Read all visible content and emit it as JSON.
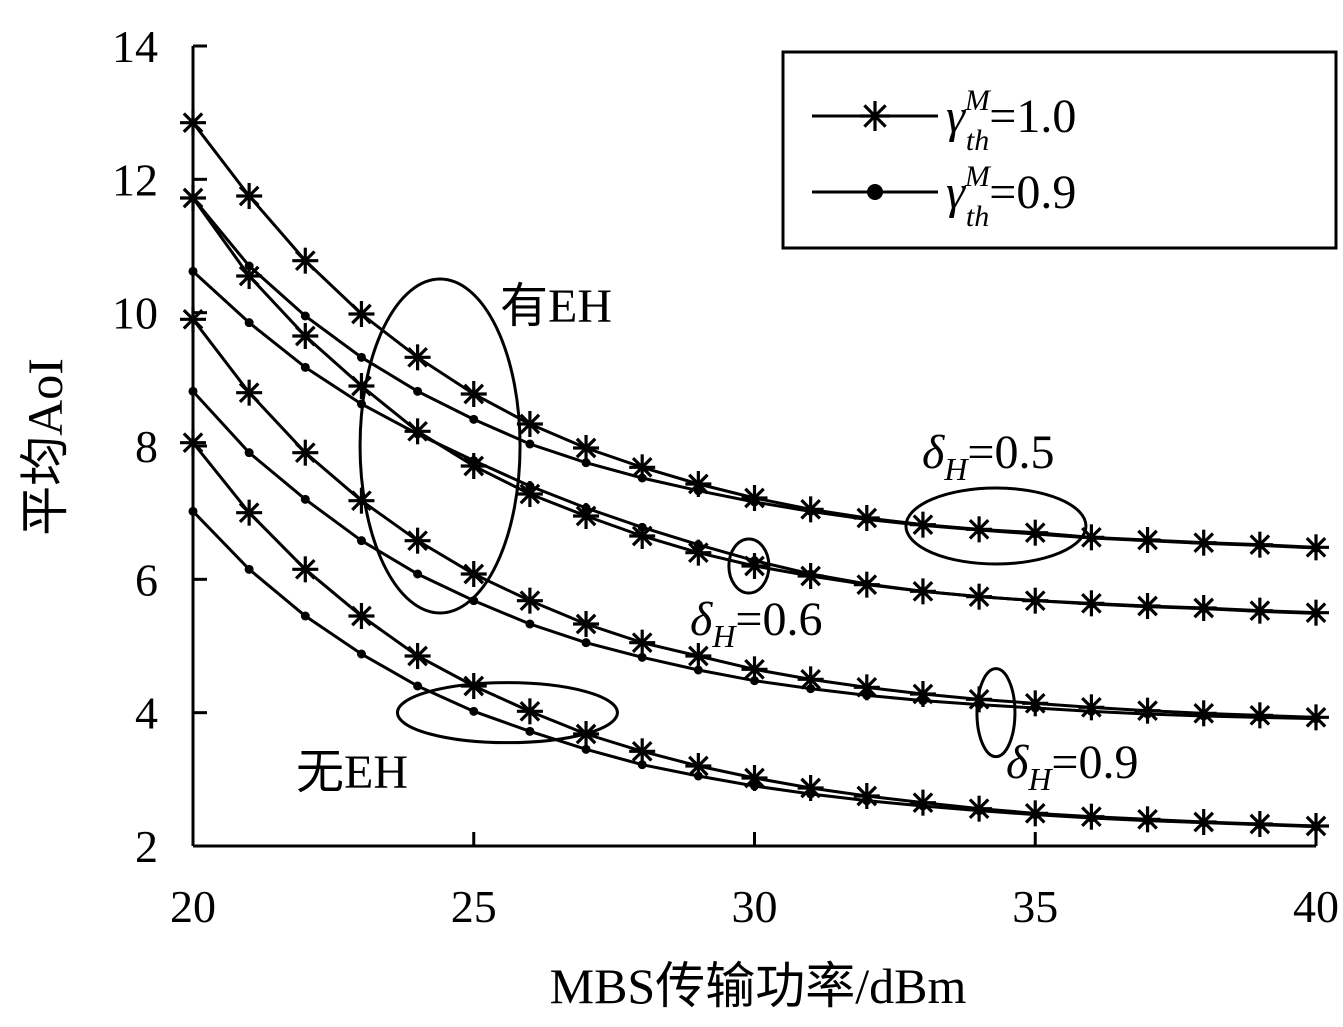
{
  "chart_data": {
    "type": "line",
    "xlabel": "MBS传输功率/dBm",
    "ylabel": "平均AoI",
    "xlim": [
      20,
      40
    ],
    "ylim": [
      2,
      14
    ],
    "xticks": [
      20,
      25,
      30,
      35,
      40
    ],
    "yticks": [
      2,
      4,
      6,
      8,
      10,
      12,
      14
    ],
    "grid": false,
    "legend_position": "top-right",
    "legend": [
      {
        "sym": "γ",
        "sup": "M",
        "sub": "th",
        "value": "=1.0",
        "marker": "asterisk"
      },
      {
        "sym": "γ",
        "sup": "M",
        "sub": "th",
        "value": "=0.9",
        "marker": "dot"
      }
    ],
    "annotations": [
      {
        "id": "with-eh",
        "text": "有EH"
      },
      {
        "id": "without-eh",
        "text": "无EH"
      },
      {
        "id": "delta-05",
        "sym": "δ",
        "sub": "H",
        "value": "=0.5"
      },
      {
        "id": "delta-06",
        "sym": "δ",
        "sub": "H",
        "value": "=0.6"
      },
      {
        "id": "delta-09",
        "sym": "δ",
        "sub": "H",
        "value": "=0.9"
      }
    ],
    "x": [
      20,
      21,
      22,
      23,
      24,
      25,
      26,
      27,
      28,
      29,
      30,
      31,
      32,
      33,
      34,
      35,
      36,
      37,
      38,
      39,
      40
    ],
    "series": [
      {
        "marker": "asterisk",
        "values": [
          12.85,
          11.75,
          10.78,
          9.98,
          9.33,
          8.78,
          8.33,
          7.97,
          7.68,
          7.43,
          7.22,
          7.05,
          6.92,
          6.82,
          6.75,
          6.7,
          6.63,
          6.59,
          6.55,
          6.52,
          6.48
        ]
      },
      {
        "marker": "dot",
        "values": [
          11.72,
          10.7,
          9.95,
          9.33,
          8.82,
          8.4,
          8.03,
          7.75,
          7.52,
          7.33,
          7.16,
          7.02,
          6.9,
          6.81,
          6.74,
          6.68,
          6.62,
          6.58,
          6.54,
          6.51,
          6.47
        ]
      },
      {
        "marker": "asterisk",
        "values": [
          11.72,
          10.55,
          9.65,
          8.9,
          8.22,
          7.7,
          7.28,
          6.95,
          6.65,
          6.4,
          6.2,
          6.05,
          5.92,
          5.82,
          5.74,
          5.68,
          5.64,
          5.6,
          5.57,
          5.53,
          5.5
        ]
      },
      {
        "marker": "dot",
        "values": [
          10.62,
          9.85,
          9.18,
          8.63,
          8.18,
          7.78,
          7.4,
          7.07,
          6.78,
          6.52,
          6.28,
          6.08,
          5.93,
          5.82,
          5.74,
          5.68,
          5.63,
          5.59,
          5.56,
          5.52,
          5.49
        ]
      },
      {
        "marker": "asterisk",
        "values": [
          9.9,
          8.8,
          7.9,
          7.18,
          6.58,
          6.08,
          5.68,
          5.33,
          5.05,
          4.85,
          4.65,
          4.5,
          4.38,
          4.28,
          4.2,
          4.14,
          4.08,
          4.03,
          3.99,
          3.96,
          3.93
        ]
      },
      {
        "marker": "dot",
        "values": [
          8.82,
          7.9,
          7.2,
          6.58,
          6.08,
          5.68,
          5.33,
          5.05,
          4.83,
          4.64,
          4.48,
          4.36,
          4.26,
          4.18,
          4.12,
          4.07,
          4.02,
          3.98,
          3.95,
          3.93,
          3.91
        ]
      },
      {
        "marker": "asterisk",
        "values": [
          8.05,
          7.0,
          6.15,
          5.45,
          4.85,
          4.4,
          4.02,
          3.68,
          3.42,
          3.2,
          3.02,
          2.87,
          2.75,
          2.65,
          2.56,
          2.49,
          2.44,
          2.4,
          2.36,
          2.33,
          2.3
        ]
      },
      {
        "marker": "dot",
        "values": [
          7.02,
          6.15,
          5.45,
          4.88,
          4.4,
          4.02,
          3.72,
          3.45,
          3.22,
          3.05,
          2.9,
          2.78,
          2.68,
          2.6,
          2.53,
          2.47,
          2.42,
          2.38,
          2.35,
          2.32,
          2.29
        ]
      }
    ]
  }
}
